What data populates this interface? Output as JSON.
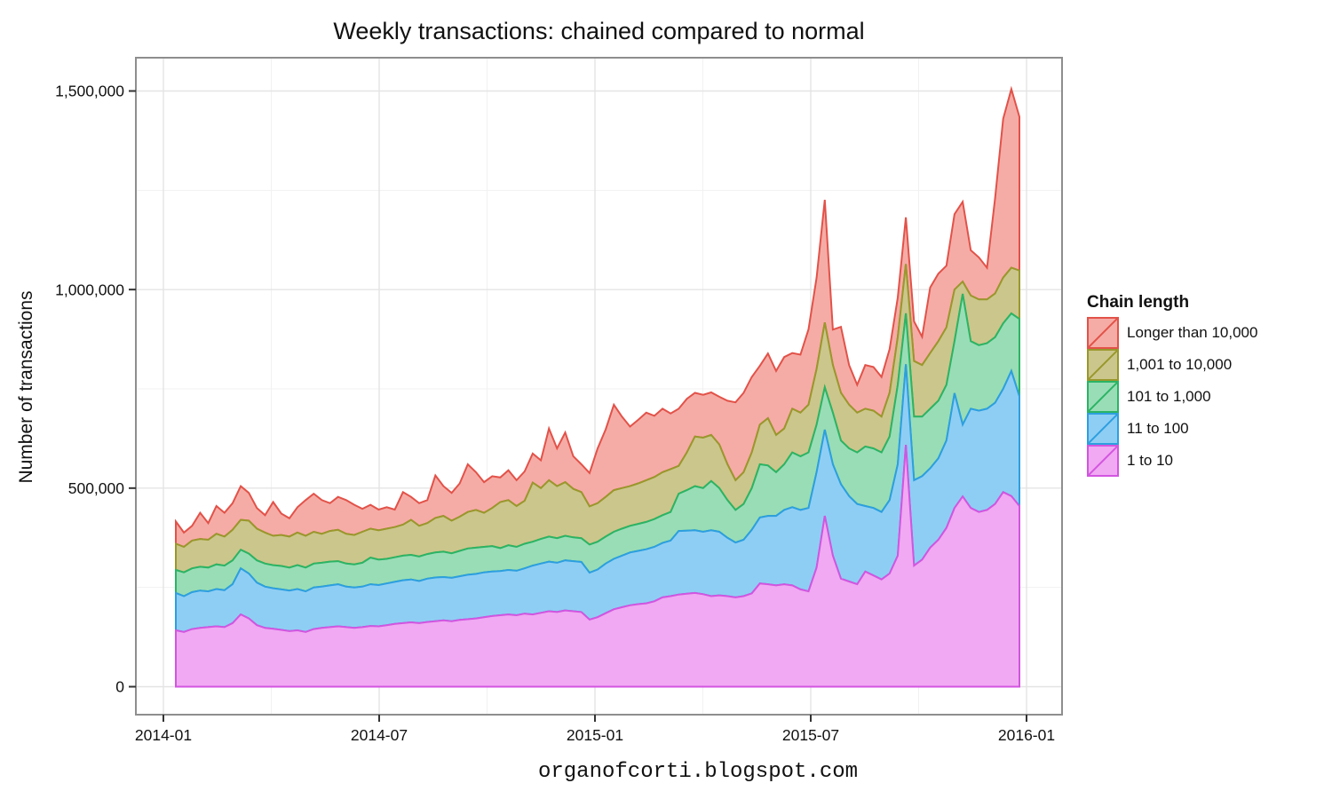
{
  "title": {
    "text": "Weekly transactions: chained compared to normal"
  },
  "caption": {
    "text": "organofcorti.blogspot.com"
  },
  "axes": {
    "y": {
      "label": "Number of transactions",
      "tick_labels": [
        "0",
        "500,000",
        "1,000,000",
        "1,500,000"
      ],
      "tick_values": [
        0,
        500000,
        1000000,
        1500000
      ]
    },
    "x": {
      "tick_labels": [
        "2014-01",
        "2014-07",
        "2015-01",
        "2015-07",
        "2016-01"
      ]
    }
  },
  "legend": {
    "title": "Chain length",
    "items": [
      {
        "label": "Longer than 10,000",
        "stroke": "#E25249",
        "fill": "#F5ACA6"
      },
      {
        "label": "1,001 to 10,000",
        "stroke": "#99982C",
        "fill": "#CBC68C"
      },
      {
        "label": "101 to 1,000",
        "stroke": "#2BB465",
        "fill": "#99DDB6"
      },
      {
        "label": "11 to 100",
        "stroke": "#2D9FE0",
        "fill": "#8FCEF4"
      },
      {
        "label": "1 to 10",
        "stroke": "#D355E0",
        "fill": "#F0A9F2"
      }
    ]
  },
  "theme": {
    "panel_background": "#FFFFFF",
    "panel_border": "#8E8E8E",
    "grid_major": "#E4E4E4",
    "grid_minor": "#F1F1F1",
    "tick_color": "#333333",
    "text_color": "#111111"
  },
  "chart_data": {
    "type": "area",
    "stacked": true,
    "title": "Weekly transactions: chained compared to normal",
    "xlabel": "",
    "ylabel": "Number of transactions",
    "x_start_date": "2014-01-05",
    "x_step_days": 7,
    "n_points": 105,
    "x_tick_labels": [
      "2014-01",
      "2014-07",
      "2015-01",
      "2015-07",
      "2016-01"
    ],
    "y_tick_values": [
      0,
      500000,
      1000000,
      1500000
    ],
    "y_minor_tick_values": [
      250000,
      750000,
      1250000
    ],
    "ylim": [
      0,
      1580000
    ],
    "grid": true,
    "legend_position": "right",
    "legend_title": "Chain length",
    "series": [
      {
        "name": "Longer than 10,000",
        "stroke": "#E25249",
        "fill": "#F5ACA6",
        "values": [
          56000,
          36000,
          37000,
          66000,
          42000,
          70000,
          60000,
          67000,
          85000,
          70000,
          52000,
          44000,
          85000,
          54000,
          46000,
          64000,
          90000,
          96000,
          85000,
          70000,
          83000,
          85000,
          76000,
          58000,
          60000,
          52000,
          54000,
          44000,
          82000,
          58000,
          57000,
          58000,
          107000,
          75000,
          70000,
          84000,
          120000,
          95000,
          77000,
          80000,
          62000,
          75000,
          65000,
          74000,
          73000,
          70000,
          130000,
          95000,
          125000,
          82000,
          70000,
          84000,
          138000,
          170000,
          215000,
          180000,
          150000,
          160000,
          170000,
          154000,
          160000,
          140000,
          144000,
          135000,
          110000,
          108000,
          107000,
          120000,
          160000,
          196000,
          200000,
          190000,
          148000,
          163000,
          161000,
          180000,
          140000,
          146000,
          190000,
          230000,
          309000,
          89000,
          166000,
          100000,
          70000,
          110000,
          110000,
          100000,
          110000,
          100000,
          118000,
          100000,
          71000,
          165000,
          170000,
          155000,
          190000,
          201000,
          114000,
          106000,
          80000,
          240000,
          400000,
          450000,
          387000
        ]
      },
      {
        "name": "1,001 to 10,000",
        "stroke": "#99982C",
        "fill": "#CBC68C",
        "values": [
          66000,
          64000,
          70000,
          70000,
          70000,
          77000,
          73000,
          77000,
          75000,
          83000,
          80000,
          78000,
          74000,
          78000,
          78000,
          82000,
          80000,
          80000,
          73000,
          77000,
          79000,
          75000,
          74000,
          78000,
          73000,
          74000,
          76000,
          76000,
          78000,
          88000,
          77000,
          78000,
          87000,
          90000,
          82000,
          86000,
          92000,
          95000,
          86000,
          96000,
          116000,
          114000,
          103000,
          108000,
          149000,
          128000,
          142000,
          131000,
          135000,
          122000,
          116000,
          96000,
          97000,
          100000,
          105000,
          102000,
          100000,
          102000,
          105000,
          106000,
          108000,
          108000,
          70000,
          95000,
          125000,
          127000,
          116000,
          110000,
          90000,
          75000,
          80000,
          90000,
          100000,
          119000,
          94000,
          90000,
          110000,
          110000,
          120000,
          140000,
          163000,
          120000,
          120000,
          110000,
          100000,
          95000,
          95000,
          90000,
          110000,
          120000,
          124000,
          140000,
          130000,
          140000,
          150000,
          145000,
          130000,
          31000,
          115000,
          115000,
          110000,
          110000,
          115000,
          115000,
          122000
        ]
      },
      {
        "name": "101 to 1,000",
        "stroke": "#2BB465",
        "fill": "#99DDB6",
        "values": [
          58000,
          60000,
          60000,
          60000,
          60000,
          62000,
          62000,
          60000,
          47000,
          50000,
          56000,
          58000,
          58000,
          59000,
          58000,
          60000,
          60000,
          60000,
          60000,
          60000,
          58000,
          58000,
          58000,
          60000,
          67000,
          64000,
          62000,
          62000,
          62000,
          62000,
          62000,
          62000,
          63000,
          64000,
          62000,
          64000,
          66000,
          66000,
          64000,
          64000,
          58000,
          62000,
          60000,
          62000,
          60000,
          62000,
          63000,
          62000,
          62000,
          60000,
          60000,
          71000,
          70000,
          68000,
          68000,
          68000,
          67000,
          68000,
          69000,
          70000,
          70000,
          72000,
          94000,
          102000,
          111000,
          110000,
          124000,
          110000,
          95000,
          82000,
          90000,
          105000,
          134000,
          127000,
          110000,
          115000,
          138000,
          135000,
          140000,
          120000,
          107000,
          130000,
          110000,
          120000,
          130000,
          150000,
          150000,
          150000,
          160000,
          200000,
          128000,
          160000,
          150000,
          150000,
          145000,
          140000,
          131000,
          329000,
          170000,
          165000,
          165000,
          165000,
          165000,
          145000,
          195000
        ]
      },
      {
        "name": "11 to 100",
        "stroke": "#2D9FE0",
        "fill": "#8FCEF4",
        "values": [
          94000,
          90000,
          93000,
          94000,
          90000,
          94000,
          93000,
          98000,
          116000,
          113000,
          107000,
          104000,
          102000,
          102000,
          102000,
          104000,
          102000,
          105000,
          104000,
          105000,
          106000,
          102000,
          102000,
          102000,
          105000,
          104000,
          105000,
          106000,
          108000,
          108000,
          106000,
          109000,
          110000,
          109000,
          109000,
          110000,
          112000,
          112000,
          113000,
          112000,
          111000,
          112000,
          112000,
          114000,
          123000,
          124000,
          125000,
          124000,
          126000,
          126000,
          126000,
          118000,
          120000,
          125000,
          127000,
          130000,
          133000,
          134000,
          136000,
          137000,
          137000,
          140000,
          160000,
          159000,
          158000,
          157000,
          166000,
          160000,
          147000,
          138000,
          142000,
          160000,
          166000,
          172000,
          175000,
          187000,
          197000,
          200000,
          210000,
          240000,
          217000,
          230000,
          238000,
          215000,
          202000,
          165000,
          170000,
          170000,
          185000,
          230000,
          203000,
          215000,
          210000,
          200000,
          205000,
          220000,
          289000,
          181000,
          250000,
          255000,
          255000,
          255000,
          260000,
          315000,
          276000
        ]
      },
      {
        "name": "1 to 10",
        "stroke": "#D355E0",
        "fill": "#F0A9F2",
        "values": [
          142000,
          138000,
          145000,
          148000,
          150000,
          152000,
          150000,
          160000,
          182000,
          172000,
          155000,
          148000,
          146000,
          143000,
          140000,
          142000,
          138000,
          145000,
          148000,
          150000,
          152000,
          150000,
          148000,
          150000,
          153000,
          152000,
          155000,
          158000,
          160000,
          162000,
          160000,
          163000,
          165000,
          167000,
          165000,
          168000,
          170000,
          172000,
          175000,
          178000,
          180000,
          182000,
          180000,
          184000,
          182000,
          186000,
          190000,
          188000,
          192000,
          190000,
          188000,
          169000,
          175000,
          185000,
          195000,
          200000,
          205000,
          208000,
          210000,
          215000,
          225000,
          228000,
          232000,
          234000,
          236000,
          233000,
          228000,
          230000,
          228000,
          225000,
          228000,
          235000,
          260000,
          258000,
          255000,
          258000,
          255000,
          245000,
          240000,
          300000,
          430000,
          330000,
          272000,
          265000,
          258000,
          290000,
          280000,
          270000,
          285000,
          330000,
          609000,
          305000,
          320000,
          350000,
          370000,
          400000,
          450000,
          479000,
          450000,
          440000,
          445000,
          460000,
          490000,
          480000,
          455000
        ]
      }
    ]
  }
}
